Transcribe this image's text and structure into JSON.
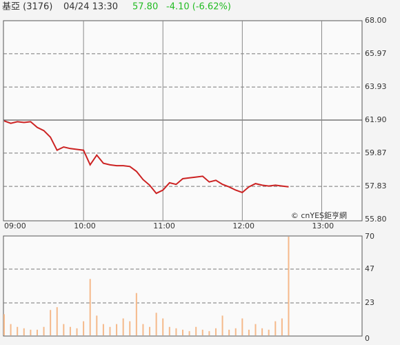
{
  "header": {
    "name": "基亞 (3176)",
    "date": "04/24 13:30",
    "price": "57.80",
    "change": "-4.10 (-6.62%)"
  },
  "chart_data": [
    {
      "type": "line",
      "annotation": "© cnYES鉅亨網",
      "color": "#cc2222",
      "x": [
        "09:00",
        "09:05",
        "09:10",
        "09:15",
        "09:20",
        "09:25",
        "09:30",
        "09:35",
        "09:40",
        "09:45",
        "09:50",
        "09:55",
        "10:00",
        "10:05",
        "10:10",
        "10:15",
        "10:20",
        "10:25",
        "10:30",
        "10:35",
        "10:40",
        "10:45",
        "10:50",
        "10:55",
        "11:00",
        "11:05",
        "11:10",
        "11:15",
        "11:20",
        "11:25",
        "11:30",
        "11:35",
        "11:40",
        "11:45",
        "11:50",
        "11:55",
        "12:00",
        "12:05",
        "12:10",
        "12:15",
        "12:20",
        "12:25",
        "12:30",
        "12:35"
      ],
      "values": [
        61.85,
        61.7,
        61.8,
        61.75,
        61.8,
        61.45,
        61.25,
        60.85,
        60.05,
        60.25,
        60.15,
        60.1,
        60.05,
        59.15,
        59.75,
        59.25,
        59.15,
        59.1,
        59.1,
        59.05,
        58.75,
        58.25,
        57.9,
        57.4,
        57.6,
        58.05,
        57.95,
        58.3,
        58.35,
        58.4,
        58.45,
        58.1,
        58.2,
        57.95,
        57.8,
        57.6,
        57.45,
        57.8,
        58.0,
        57.9,
        57.85,
        57.9,
        57.85,
        57.8
      ],
      "xlim": [
        "09:00",
        "13:30"
      ],
      "xticks": [
        "09:00",
        "10:00",
        "11:00",
        "12:00",
        "13:00"
      ],
      "ylim": [
        55.8,
        68.0
      ],
      "yticks": [
        {
          "value": 55.8,
          "label": "55.80"
        },
        {
          "value": 57.83,
          "label": "57.83"
        },
        {
          "value": 59.87,
          "label": "59.87"
        },
        {
          "value": 61.9,
          "label": "61.90"
        },
        {
          "value": 63.93,
          "label": "63.93"
        },
        {
          "value": 65.97,
          "label": "65.97"
        },
        {
          "value": 68.0,
          "label": "68.00"
        }
      ],
      "reference": 61.9,
      "grid": true
    },
    {
      "type": "bar",
      "color": "#f5b98a",
      "x": [
        "09:00",
        "09:05",
        "09:10",
        "09:15",
        "09:20",
        "09:25",
        "09:30",
        "09:35",
        "09:40",
        "09:45",
        "09:50",
        "09:55",
        "10:00",
        "10:05",
        "10:10",
        "10:15",
        "10:20",
        "10:25",
        "10:30",
        "10:35",
        "10:40",
        "10:45",
        "10:50",
        "10:55",
        "11:00",
        "11:05",
        "11:10",
        "11:15",
        "11:20",
        "11:25",
        "11:30",
        "11:35",
        "11:40",
        "11:45",
        "11:50",
        "11:55",
        "12:00",
        "12:05",
        "12:10",
        "12:15",
        "12:20",
        "12:25",
        "12:30",
        "12:35"
      ],
      "values": [
        15,
        8,
        6,
        5,
        4,
        4,
        6,
        18,
        20,
        8,
        6,
        5,
        10,
        40,
        14,
        8,
        6,
        8,
        12,
        10,
        30,
        8,
        6,
        16,
        12,
        6,
        5,
        4,
        3,
        6,
        4,
        3,
        5,
        14,
        4,
        5,
        12,
        4,
        8,
        5,
        4,
        10,
        12,
        70
      ],
      "xlim": [
        "09:00",
        "13:30"
      ],
      "ylim": [
        0,
        70
      ],
      "yticks": [
        0,
        23,
        47,
        70
      ],
      "grid": true
    }
  ]
}
